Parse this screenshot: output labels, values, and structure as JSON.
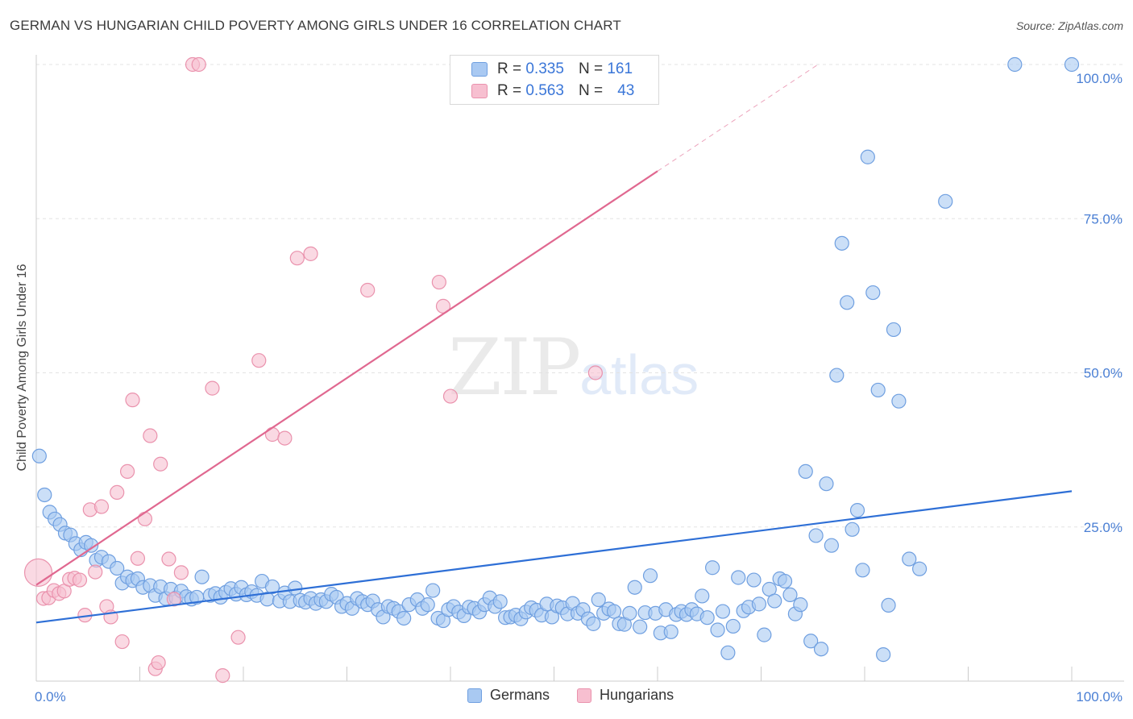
{
  "header": {
    "title": "GERMAN VS HUNGARIAN CHILD POVERTY AMONG GIRLS UNDER 16 CORRELATION CHART",
    "source": "Source: ZipAtlas.com"
  },
  "watermark": {
    "zip": "ZIP",
    "atlas": "atlas"
  },
  "legend": {
    "rows": [
      {
        "r_label": "R =",
        "r_value": "0.335",
        "n_label": "N =",
        "n_value": "161"
      },
      {
        "r_label": "R =",
        "r_value": "0.563",
        "n_label": "N =",
        "n_value": "43"
      }
    ]
  },
  "colors": {
    "germans_fill": "#a9c9f2",
    "germans_stroke": "#6f9fe0",
    "germans_line": "#2e6fd6",
    "hungarians_fill": "#f7bfd0",
    "hungarians_stroke": "#ea92ad",
    "hungarians_line": "#e06890",
    "grid": "#e3e3e3",
    "tick_label": "#4a7fd4"
  },
  "chart_data": {
    "type": "scatter",
    "title": "GERMAN VS HUNGARIAN CHILD POVERTY AMONG GIRLS UNDER 16 CORRELATION CHART",
    "xlabel": "",
    "ylabel": "Child Poverty Among Girls Under 16",
    "xlim": [
      0,
      100
    ],
    "ylim": [
      0,
      100
    ],
    "x_tick_labels": [
      "0.0%",
      "100.0%"
    ],
    "y_ticks": [
      25,
      50,
      75,
      100
    ],
    "y_tick_labels": [
      "25.0%",
      "50.0%",
      "75.0%",
      "100.0%"
    ],
    "grid": true,
    "legend_position": "bottom",
    "series": [
      {
        "name": "Germans",
        "r": 0.335,
        "n": 161,
        "trend": {
          "x": [
            0,
            100
          ],
          "y": [
            9.5,
            30.8
          ]
        },
        "points": [
          [
            0.3,
            36.5
          ],
          [
            0.8,
            30.2
          ],
          [
            1.3,
            27.4
          ],
          [
            1.8,
            26.3
          ],
          [
            2.3,
            25.4
          ],
          [
            2.8,
            24.0
          ],
          [
            3.3,
            23.7
          ],
          [
            3.8,
            22.3
          ],
          [
            4.3,
            21.3
          ],
          [
            4.8,
            22.5
          ],
          [
            5.3,
            22.0
          ],
          [
            5.8,
            19.6
          ],
          [
            6.3,
            20.1
          ],
          [
            7.0,
            19.4
          ],
          [
            7.8,
            18.3
          ],
          [
            8.3,
            15.9
          ],
          [
            8.8,
            16.9
          ],
          [
            9.3,
            16.3
          ],
          [
            9.8,
            16.6
          ],
          [
            10.3,
            15.2
          ],
          [
            11.0,
            15.5
          ],
          [
            11.5,
            13.9
          ],
          [
            12.0,
            15.3
          ],
          [
            12.5,
            13.4
          ],
          [
            13.0,
            14.9
          ],
          [
            13.5,
            13.5
          ],
          [
            14.0,
            14.6
          ],
          [
            14.5,
            13.7
          ],
          [
            15.0,
            13.3
          ],
          [
            15.5,
            13.6
          ],
          [
            16.0,
            16.9
          ],
          [
            16.8,
            13.9
          ],
          [
            17.3,
            14.2
          ],
          [
            17.8,
            13.6
          ],
          [
            18.3,
            14.4
          ],
          [
            18.8,
            15.0
          ],
          [
            19.3,
            14.1
          ],
          [
            19.8,
            15.2
          ],
          [
            20.3,
            14.0
          ],
          [
            20.8,
            14.5
          ],
          [
            21.3,
            13.9
          ],
          [
            21.8,
            16.2
          ],
          [
            22.3,
            13.3
          ],
          [
            22.8,
            15.3
          ],
          [
            23.5,
            13.0
          ],
          [
            24.0,
            14.3
          ],
          [
            24.5,
            12.9
          ],
          [
            25.0,
            15.1
          ],
          [
            25.5,
            13.1
          ],
          [
            26.0,
            12.8
          ],
          [
            26.5,
            13.4
          ],
          [
            27.0,
            12.6
          ],
          [
            27.5,
            13.2
          ],
          [
            28.0,
            12.9
          ],
          [
            28.5,
            14.1
          ],
          [
            29.0,
            13.6
          ],
          [
            29.5,
            12.1
          ],
          [
            30.0,
            12.6
          ],
          [
            30.5,
            11.8
          ],
          [
            31.0,
            13.4
          ],
          [
            31.5,
            12.9
          ],
          [
            32.0,
            12.4
          ],
          [
            32.5,
            13.0
          ],
          [
            33.0,
            11.6
          ],
          [
            33.5,
            10.4
          ],
          [
            34.0,
            12.1
          ],
          [
            34.5,
            11.8
          ],
          [
            35.0,
            11.3
          ],
          [
            35.5,
            10.2
          ],
          [
            36.0,
            12.4
          ],
          [
            36.8,
            13.2
          ],
          [
            37.3,
            11.8
          ],
          [
            37.8,
            12.4
          ],
          [
            38.3,
            14.7
          ],
          [
            38.8,
            10.2
          ],
          [
            39.3,
            9.8
          ],
          [
            39.8,
            11.6
          ],
          [
            40.3,
            12.1
          ],
          [
            40.8,
            11.2
          ],
          [
            41.3,
            10.6
          ],
          [
            41.8,
            12.0
          ],
          [
            42.3,
            11.8
          ],
          [
            42.8,
            11.2
          ],
          [
            43.3,
            12.4
          ],
          [
            43.8,
            13.5
          ],
          [
            44.3,
            12.1
          ],
          [
            44.8,
            12.9
          ],
          [
            45.3,
            10.3
          ],
          [
            45.8,
            10.4
          ],
          [
            46.3,
            10.7
          ],
          [
            46.8,
            10.1
          ],
          [
            47.3,
            11.2
          ],
          [
            47.8,
            11.9
          ],
          [
            48.3,
            11.5
          ],
          [
            48.8,
            10.7
          ],
          [
            49.3,
            12.5
          ],
          [
            49.8,
            10.4
          ],
          [
            50.3,
            12.2
          ],
          [
            50.8,
            11.9
          ],
          [
            51.3,
            10.9
          ],
          [
            51.8,
            12.6
          ],
          [
            52.3,
            11.0
          ],
          [
            52.8,
            11.6
          ],
          [
            53.3,
            10.1
          ],
          [
            53.8,
            9.3
          ],
          [
            54.3,
            13.2
          ],
          [
            54.8,
            11.0
          ],
          [
            55.3,
            11.7
          ],
          [
            55.8,
            11.3
          ],
          [
            56.3,
            9.3
          ],
          [
            56.8,
            9.2
          ],
          [
            57.3,
            11.0
          ],
          [
            57.8,
            15.2
          ],
          [
            58.3,
            8.8
          ],
          [
            58.8,
            11.1
          ],
          [
            59.3,
            17.1
          ],
          [
            59.8,
            11.0
          ],
          [
            60.3,
            7.8
          ],
          [
            60.8,
            11.6
          ],
          [
            61.3,
            8.0
          ],
          [
            61.8,
            10.8
          ],
          [
            62.3,
            11.3
          ],
          [
            62.8,
            10.8
          ],
          [
            63.3,
            11.6
          ],
          [
            63.8,
            10.9
          ],
          [
            64.3,
            13.8
          ],
          [
            64.8,
            10.3
          ],
          [
            65.3,
            18.4
          ],
          [
            65.8,
            8.3
          ],
          [
            66.3,
            11.3
          ],
          [
            66.8,
            4.6
          ],
          [
            67.3,
            8.9
          ],
          [
            67.8,
            16.8
          ],
          [
            68.3,
            11.4
          ],
          [
            68.8,
            12.0
          ],
          [
            69.3,
            16.4
          ],
          [
            69.8,
            12.5
          ],
          [
            70.3,
            7.5
          ],
          [
            70.8,
            14.9
          ],
          [
            71.3,
            13.0
          ],
          [
            71.8,
            16.6
          ],
          [
            72.3,
            16.2
          ],
          [
            72.8,
            14.0
          ],
          [
            73.3,
            10.9
          ],
          [
            73.8,
            12.4
          ],
          [
            74.3,
            34.0
          ],
          [
            74.8,
            6.5
          ],
          [
            75.3,
            23.6
          ],
          [
            75.8,
            5.2
          ],
          [
            76.3,
            32.0
          ],
          [
            76.8,
            22.0
          ],
          [
            77.3,
            49.6
          ],
          [
            77.8,
            71.0
          ],
          [
            78.3,
            61.4
          ],
          [
            78.8,
            24.6
          ],
          [
            79.3,
            27.7
          ],
          [
            79.8,
            18.0
          ],
          [
            80.3,
            85.0
          ],
          [
            80.8,
            63.0
          ],
          [
            81.3,
            47.2
          ],
          [
            81.8,
            4.3
          ],
          [
            82.3,
            12.3
          ],
          [
            82.8,
            57.0
          ],
          [
            83.3,
            45.4
          ],
          [
            84.3,
            19.8
          ],
          [
            85.3,
            18.2
          ],
          [
            87.8,
            77.8
          ],
          [
            94.5,
            100
          ],
          [
            100,
            100
          ]
        ]
      },
      {
        "name": "Hungarians",
        "r": 0.563,
        "n": 43,
        "trend": {
          "x": [
            0,
            60
          ],
          "y": [
            15.6,
            82.7
          ]
        },
        "trend_dashed": {
          "x": [
            60,
            75.5
          ],
          "y": [
            82.7,
            100
          ]
        },
        "points": [
          [
            0.2,
            17.6
          ],
          [
            0.7,
            13.4
          ],
          [
            1.2,
            13.5
          ],
          [
            1.7,
            14.7
          ],
          [
            2.2,
            14.2
          ],
          [
            2.7,
            14.6
          ],
          [
            3.2,
            16.5
          ],
          [
            3.7,
            16.7
          ],
          [
            4.2,
            16.4
          ],
          [
            4.7,
            10.7
          ],
          [
            5.2,
            27.8
          ],
          [
            5.7,
            17.7
          ],
          [
            6.3,
            28.3
          ],
          [
            6.8,
            12.1
          ],
          [
            7.2,
            10.4
          ],
          [
            7.8,
            30.6
          ],
          [
            8.3,
            6.4
          ],
          [
            8.8,
            34.0
          ],
          [
            9.3,
            45.6
          ],
          [
            9.8,
            19.9
          ],
          [
            10.5,
            26.3
          ],
          [
            11.0,
            39.8
          ],
          [
            11.5,
            2.0
          ],
          [
            11.8,
            3.0
          ],
          [
            12.0,
            35.2
          ],
          [
            12.8,
            19.8
          ],
          [
            13.3,
            13.3
          ],
          [
            14.0,
            17.6
          ],
          [
            15.1,
            100
          ],
          [
            15.7,
            100
          ],
          [
            17.0,
            47.5
          ],
          [
            18.0,
            0.9
          ],
          [
            19.5,
            7.1
          ],
          [
            21.5,
            52.0
          ],
          [
            22.8,
            40.0
          ],
          [
            24.0,
            39.4
          ],
          [
            25.2,
            68.6
          ],
          [
            26.5,
            69.3
          ],
          [
            32.0,
            63.4
          ],
          [
            38.9,
            64.7
          ],
          [
            39.3,
            60.8
          ],
          [
            40.0,
            46.2
          ],
          [
            54.0,
            50.0
          ]
        ]
      }
    ]
  }
}
